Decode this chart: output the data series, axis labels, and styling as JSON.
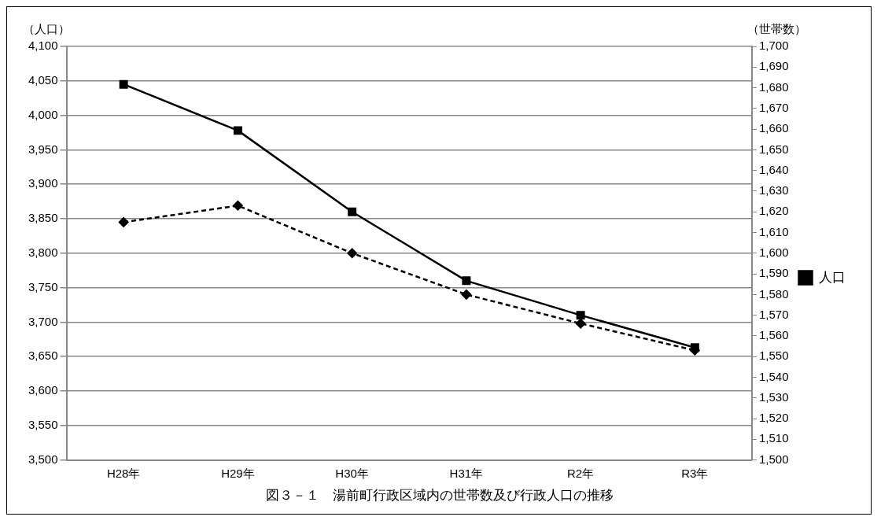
{
  "chart_data": {
    "type": "line",
    "title": "図３－１　湯前町行政区域内の世帯数及び行政人口の推移",
    "ylabel": "（人口）",
    "y2label": "（世帯数）",
    "categories": [
      "H28年",
      "H29年",
      "H30年",
      "H31年",
      "R2年",
      "R3年"
    ],
    "series": [
      {
        "name": "人口",
        "color": "#000000",
        "values": [
          4045,
          3978,
          3860,
          3760,
          3710,
          3663
        ],
        "marker": "square",
        "line_style": "solid"
      },
      {
        "color": "#000000",
        "values": [
          1615,
          1623,
          1600,
          1580,
          1566,
          1553
        ],
        "axis": "y2",
        "marker": "diamond",
        "line_style": "dashed"
      }
    ],
    "ylim": [
      3500,
      4100
    ],
    "yticks": [
      {
        "value": 3500,
        "label": "3,500"
      },
      {
        "value": 3550,
        "label": "3,550"
      },
      {
        "value": 3600,
        "label": "3,600"
      },
      {
        "value": 3650,
        "label": "3,650"
      },
      {
        "value": 3700,
        "label": "3,700"
      },
      {
        "value": 3750,
        "label": "3,750"
      },
      {
        "value": 3800,
        "label": "3,800"
      },
      {
        "value": 3850,
        "label": "3,850"
      },
      {
        "value": 3900,
        "label": "3,900"
      },
      {
        "value": 3950,
        "label": "3,950"
      },
      {
        "value": 4000,
        "label": "4,000"
      },
      {
        "value": 4050,
        "label": "4,050"
      },
      {
        "value": 4100,
        "label": "4,100"
      }
    ],
    "y2lim": [
      1500,
      1700
    ],
    "y2ticks": [
      {
        "value": 1500,
        "label": "1,500"
      },
      {
        "value": 1510,
        "label": "1,510"
      },
      {
        "value": 1520,
        "label": "1,520"
      },
      {
        "value": 1530,
        "label": "1,530"
      },
      {
        "value": 1540,
        "label": "1,540"
      },
      {
        "value": 1550,
        "label": "1,550"
      },
      {
        "value": 1560,
        "label": "1,560"
      },
      {
        "value": 1570,
        "label": "1,570"
      },
      {
        "value": 1580,
        "label": "1,580"
      },
      {
        "value": 1590,
        "label": "1,590"
      },
      {
        "value": 1600,
        "label": "1,600"
      },
      {
        "value": 1610,
        "label": "1,610"
      },
      {
        "value": 1620,
        "label": "1,620"
      },
      {
        "value": 1630,
        "label": "1,630"
      },
      {
        "value": 1640,
        "label": "1,640"
      },
      {
        "value": 1650,
        "label": "1,650"
      },
      {
        "value": 1660,
        "label": "1,660"
      },
      {
        "value": 1670,
        "label": "1,670"
      },
      {
        "value": 1680,
        "label": "1,680"
      },
      {
        "value": 1690,
        "label": "1,690"
      },
      {
        "value": 1700,
        "label": "1,700"
      }
    ],
    "grid": "y",
    "legend": "right"
  }
}
